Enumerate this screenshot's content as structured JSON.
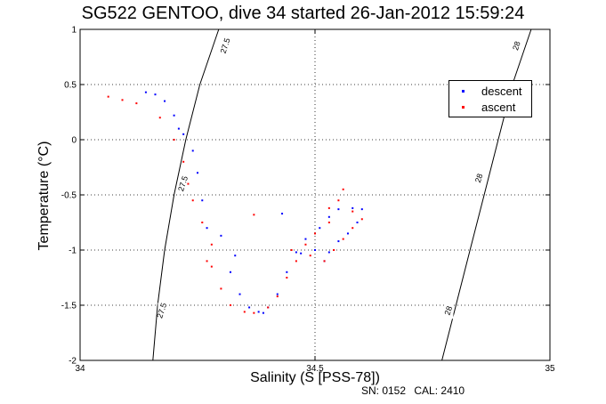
{
  "chart_data": {
    "type": "scatter",
    "title": "SG522 GENTOO, dive 34 started 26-Jan-2012 15:59:24",
    "xlabel": "Salinity (S [PSS-78])",
    "ylabel": "Temperature (°C)",
    "xlim": [
      34,
      35
    ],
    "ylim": [
      -2,
      1
    ],
    "xticks": [
      "34",
      "34.5",
      "35"
    ],
    "yticks": [
      "-2",
      "-1.5",
      "-1",
      "-0.5",
      "0",
      "0.5",
      "1"
    ],
    "grid": true,
    "legend_position": "top-right",
    "footer": [
      "SN: 0152",
      "CAL: 2410"
    ],
    "colors": {
      "descent": "#0000ff",
      "ascent": "#ff0000",
      "isopycnal": "#000000"
    },
    "isopycnals": [
      {
        "label": "27.5",
        "points": [
          [
            34.155,
            -2
          ],
          [
            34.165,
            -1.5
          ],
          [
            34.18,
            -1.0
          ],
          [
            34.2,
            -0.5
          ],
          [
            34.225,
            0
          ],
          [
            34.255,
            0.5
          ],
          [
            34.295,
            1
          ]
        ],
        "label_positions": [
          [
            34.175,
            -1.55
          ],
          [
            34.22,
            -0.4
          ],
          [
            34.31,
            0.85
          ]
        ]
      },
      {
        "label": "28",
        "points": [
          [
            34.77,
            -2
          ],
          [
            34.8,
            -1.5
          ],
          [
            34.83,
            -1.0
          ],
          [
            34.86,
            -0.5
          ],
          [
            34.89,
            0
          ],
          [
            34.92,
            0.5
          ],
          [
            34.96,
            1
          ]
        ],
        "label_positions": [
          [
            34.785,
            -1.55
          ],
          [
            34.85,
            -0.35
          ],
          [
            34.93,
            0.85
          ]
        ]
      }
    ],
    "series": [
      {
        "name": "descent",
        "points": [
          [
            34.14,
            0.43
          ],
          [
            34.16,
            0.41
          ],
          [
            34.18,
            0.35
          ],
          [
            34.2,
            0.22
          ],
          [
            34.21,
            0.1
          ],
          [
            34.22,
            0.05
          ],
          [
            34.24,
            -0.1
          ],
          [
            34.25,
            -0.3
          ],
          [
            34.26,
            -0.55
          ],
          [
            34.27,
            -0.8
          ],
          [
            34.3,
            -0.87
          ],
          [
            34.33,
            -1.05
          ],
          [
            34.32,
            -1.2
          ],
          [
            34.34,
            -1.4
          ],
          [
            34.36,
            -1.52
          ],
          [
            34.38,
            -1.56
          ],
          [
            34.39,
            -1.57
          ],
          [
            34.4,
            -1.52
          ],
          [
            34.42,
            -1.4
          ],
          [
            34.44,
            -1.2
          ],
          [
            34.46,
            -1.02
          ],
          [
            34.48,
            -0.9
          ],
          [
            34.51,
            -0.8
          ],
          [
            34.53,
            -0.7
          ],
          [
            34.55,
            -0.63
          ],
          [
            34.58,
            -0.62
          ],
          [
            34.6,
            -0.63
          ],
          [
            34.52,
            -1.1
          ],
          [
            34.53,
            -1.02
          ],
          [
            34.55,
            -0.92
          ],
          [
            34.57,
            -0.85
          ],
          [
            34.59,
            -0.75
          ],
          [
            34.47,
            -1.03
          ],
          [
            34.5,
            -1.0
          ],
          [
            34.43,
            -0.67
          ]
        ]
      },
      {
        "name": "ascent",
        "points": [
          [
            34.06,
            0.39
          ],
          [
            34.09,
            0.36
          ],
          [
            34.12,
            0.33
          ],
          [
            34.17,
            0.2
          ],
          [
            34.2,
            0.0
          ],
          [
            34.22,
            -0.2
          ],
          [
            34.23,
            -0.4
          ],
          [
            34.24,
            -0.55
          ],
          [
            34.26,
            -0.75
          ],
          [
            34.28,
            -0.95
          ],
          [
            34.27,
            -1.1
          ],
          [
            34.28,
            -1.15
          ],
          [
            34.3,
            -1.35
          ],
          [
            34.32,
            -1.5
          ],
          [
            34.35,
            -1.56
          ],
          [
            34.37,
            -1.57
          ],
          [
            34.4,
            -1.52
          ],
          [
            34.42,
            -1.42
          ],
          [
            34.44,
            -1.25
          ],
          [
            34.46,
            -1.1
          ],
          [
            34.48,
            -0.95
          ],
          [
            34.5,
            -0.85
          ],
          [
            34.53,
            -0.75
          ],
          [
            34.55,
            -0.55
          ],
          [
            34.56,
            -0.45
          ],
          [
            34.58,
            -0.65
          ],
          [
            34.53,
            -0.62
          ],
          [
            34.52,
            -1.1
          ],
          [
            34.54,
            -1.0
          ],
          [
            34.56,
            -0.9
          ],
          [
            34.58,
            -0.8
          ],
          [
            34.6,
            -0.72
          ],
          [
            34.49,
            -1.05
          ],
          [
            34.45,
            -1.0
          ],
          [
            34.37,
            -0.68
          ]
        ]
      }
    ]
  }
}
